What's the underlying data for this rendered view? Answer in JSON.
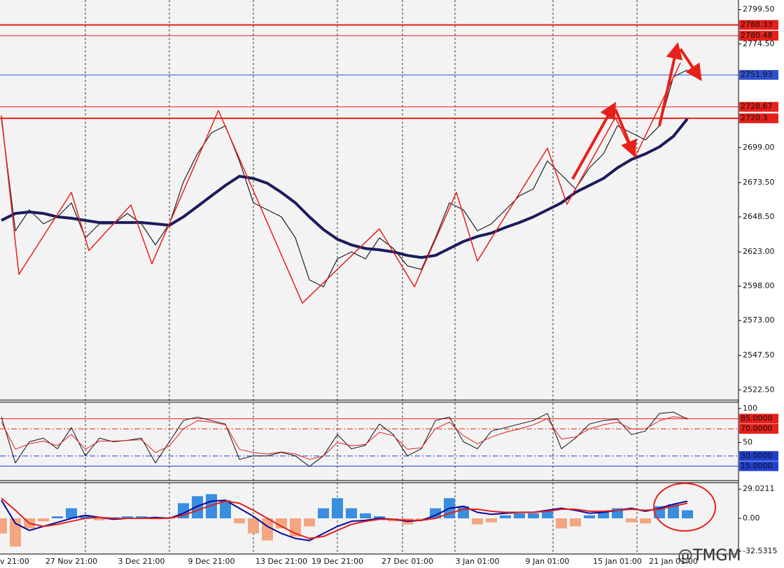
{
  "chart_data": [
    {
      "type": "line",
      "categories": [
        "v 21:00",
        null,
        null,
        null,
        null,
        "27 Nov 21:00",
        null,
        null,
        null,
        null,
        "3 Dec 21:00",
        null,
        null,
        null,
        null,
        "9 Dec 21:00",
        null,
        null,
        null,
        null,
        "13 Dec 21:00",
        null,
        null,
        null,
        "19 Dec 21:00",
        null,
        null,
        null,
        null,
        "27 Dec 01:00",
        null,
        null,
        null,
        null,
        "3 Jan 01:00",
        null,
        null,
        null,
        null,
        "9 Jan 01:00",
        null,
        null,
        null,
        null,
        "15 Jan 01:00",
        null,
        null,
        null,
        "21 Jan 01:00",
        null
      ],
      "series": [
        {
          "color": "#1e1e1e",
          "width": 1.2,
          "values": [
            2719.9,
            2638.3,
            2653.6,
            2643.4,
            2648.5,
            2658.7,
            2633.2,
            2643.4,
            2643.4,
            2651.0,
            2643.4,
            2628.1,
            2643.4,
            2674.0,
            2694.4,
            2709.7,
            2714.8,
            2689.3,
            2658.7,
            2653.6,
            2648.5,
            2633.2,
            2602.6,
            2597.5,
            2617.9,
            2623.0,
            2617.9,
            2633.2,
            2625.5,
            2612.8,
            2610.2,
            2633.2,
            2658.7,
            2653.6,
            2638.3,
            2643.4,
            2653.6,
            2663.8,
            2668.9,
            2689.3,
            2679.1,
            2668.9,
            2684.2,
            2694.4,
            2714.8,
            2709.7,
            2704.6,
            2714.8,
            2750.5,
            2755.6
          ]
        },
        {
          "color": "#1b1b5c",
          "width": 4,
          "values": [
            2645.9,
            2651.0,
            2652.1,
            2651.0,
            2648.5,
            2647.5,
            2645.9,
            2644.4,
            2644.4,
            2644.4,
            2644.4,
            2643.4,
            2642.4,
            2648.5,
            2656.1,
            2663.8,
            2671.4,
            2678.1,
            2676.5,
            2673.0,
            2666.3,
            2658.7,
            2648.5,
            2639.3,
            2632.2,
            2628.1,
            2625.5,
            2624.5,
            2623.0,
            2620.4,
            2618.9,
            2620.4,
            2625.5,
            2630.6,
            2634.2,
            2636.7,
            2640.8,
            2644.4,
            2648.5,
            2653.6,
            2658.7,
            2666.3,
            2671.4,
            2676.5,
            2684.2,
            2690.3,
            2694.4,
            2699.5,
            2707.2,
            2719.9
          ]
        },
        {
          "color": "#e8201a",
          "width": 1.5,
          "x": [
            0,
            1.25,
            5,
            6.25,
            9.25,
            10.75,
            15.5,
            21.5,
            27,
            29.5,
            32.5,
            34,
            39,
            40.4,
            43.85,
            45.25,
            48.5
          ],
          "values": [
            2722.5,
            2606.6,
            2666.3,
            2624.0,
            2657.2,
            2614.3,
            2726.0,
            2585.7,
            2639.8,
            2597.5,
            2666.3,
            2616.3,
            2698.5,
            2657.7,
            2720.9,
            2691.8,
            2760.7
          ]
        }
      ],
      "ylim": [
        2515,
        2806.5
      ],
      "yticks": [
        {
          "value": 2799.5,
          "label": "2799.50"
        },
        {
          "value": 2774.5,
          "label": "2774.50"
        },
        {
          "value": 2699,
          "label": "2699.00"
        },
        {
          "value": 2673.5,
          "label": "2673.50"
        },
        {
          "value": 2648.5,
          "label": "2648.50"
        },
        {
          "value": 2623,
          "label": "2623.00"
        },
        {
          "value": 2598,
          "label": "2598.00"
        },
        {
          "value": 2573,
          "label": "2573.00"
        },
        {
          "value": 2547.5,
          "label": "2547.50"
        },
        {
          "value": 2522.5,
          "label": "2522.50"
        }
      ],
      "levels": [
        {
          "value": 2788.33,
          "color": "#e8201a",
          "width": 2
        },
        {
          "value": 2780.48,
          "color": "#e8201a",
          "width": 1
        },
        {
          "value": 2751.93,
          "color": "#3050d0",
          "width": 1
        },
        {
          "value": 2728.67,
          "color": "#e8201a",
          "width": 1
        },
        {
          "value": 2720.3,
          "color": "#e8201a",
          "width": 2
        }
      ]
    },
    {
      "type": "line",
      "series": [
        {
          "color": "#111111",
          "width": 1,
          "values": [
            87.5,
            19.8,
            51.0,
            56.3,
            40.6,
            71.9,
            30.2,
            56.3,
            51.0,
            53.1,
            56.3,
            19.8,
            51.0,
            82.3,
            87.5,
            82.3,
            77.1,
            25.0,
            30.2,
            30.2,
            35.4,
            30.2,
            14.6,
            30.2,
            61.5,
            40.6,
            45.8,
            77.1,
            61.5,
            30.2,
            40.6,
            82.3,
            87.5,
            51.0,
            40.6,
            66.7,
            71.9,
            77.1,
            82.3,
            92.7,
            40.6,
            56.3,
            77.1,
            82.3,
            84.4,
            61.5,
            66.7,
            92.7,
            94.8,
            84.4
          ]
        },
        {
          "color": "#e02020",
          "width": 1,
          "values": [
            80,
            40,
            48,
            52,
            45,
            62,
            40,
            52,
            52,
            53,
            54,
            35,
            45,
            70,
            82,
            80,
            76,
            40,
            35,
            33,
            36,
            33,
            25,
            30,
            50,
            45,
            47,
            65,
            60,
            40,
            42,
            70,
            80,
            60,
            48,
            58,
            65,
            70,
            76,
            85,
            55,
            58,
            70,
            76,
            80,
            70,
            70,
            82,
            88,
            86
          ]
        }
      ],
      "ylim": [
        -6.25,
        108.3
      ],
      "yticks": [
        100,
        50
      ],
      "levels": [
        {
          "value": 85,
          "label": "85.0000",
          "color": "#e8201a",
          "width": 1
        },
        {
          "value": 70,
          "label": "70.0000",
          "color": "#e8201a",
          "width": 1,
          "dash": "8 3 2 3"
        },
        {
          "value": 30,
          "label": "30.0000",
          "color": "#2040d0",
          "width": 1,
          "dash": "8 3 2 3"
        },
        {
          "value": 15,
          "label": "15.0000",
          "color": "#2040d0",
          "width": 1
        }
      ]
    },
    {
      "type": "macd",
      "histogram": {
        "up_color": "#3a8ee0",
        "down_color": "#f4a582",
        "values": [
          -15,
          -28,
          -10,
          -3,
          2,
          10,
          3,
          -2,
          1,
          2,
          2,
          -1,
          1,
          15,
          22,
          24,
          18,
          -5,
          -15,
          -22,
          -10,
          -18,
          -8,
          10,
          20,
          10,
          5,
          2,
          -3,
          -6,
          -2,
          10,
          20,
          12,
          -6,
          -4,
          3,
          5,
          5,
          8,
          -10,
          -8,
          3,
          6,
          10,
          -4,
          -5,
          12,
          14,
          8
        ]
      },
      "series": [
        {
          "color": "#0a0a9a",
          "width": 2,
          "values": [
            18,
            -5,
            -12,
            -8,
            -4,
            0,
            3,
            1,
            -1,
            0,
            0,
            1,
            0,
            5,
            12,
            17,
            18,
            10,
            2,
            -8,
            -15,
            -20,
            -22,
            -15,
            -8,
            -3,
            -2,
            0,
            -1,
            -3,
            -2,
            3,
            10,
            12,
            6,
            4,
            5,
            6,
            6,
            8,
            10,
            8,
            5,
            6,
            8,
            10,
            7,
            10,
            14,
            17
          ]
        },
        {
          "color": "#e02020",
          "width": 2,
          "values": [
            20,
            8,
            -5,
            -8,
            -6,
            -3,
            0,
            1,
            0,
            0,
            0,
            0,
            0,
            3,
            8,
            13,
            17,
            15,
            8,
            0,
            -8,
            -15,
            -20,
            -18,
            -12,
            -6,
            -3,
            -1,
            -1,
            -2,
            -2,
            0,
            5,
            9,
            9,
            7,
            6,
            6,
            6,
            7,
            9,
            9,
            7,
            7,
            8,
            9,
            8,
            9,
            12,
            15
          ]
        }
      ],
      "ylim": [
        -35.4,
        35.4
      ],
      "yticks": [
        29.0211,
        {
          "value": 0,
          "label": "0.00"
        },
        -32.5315
      ]
    }
  ],
  "watermark": "@TMGM"
}
